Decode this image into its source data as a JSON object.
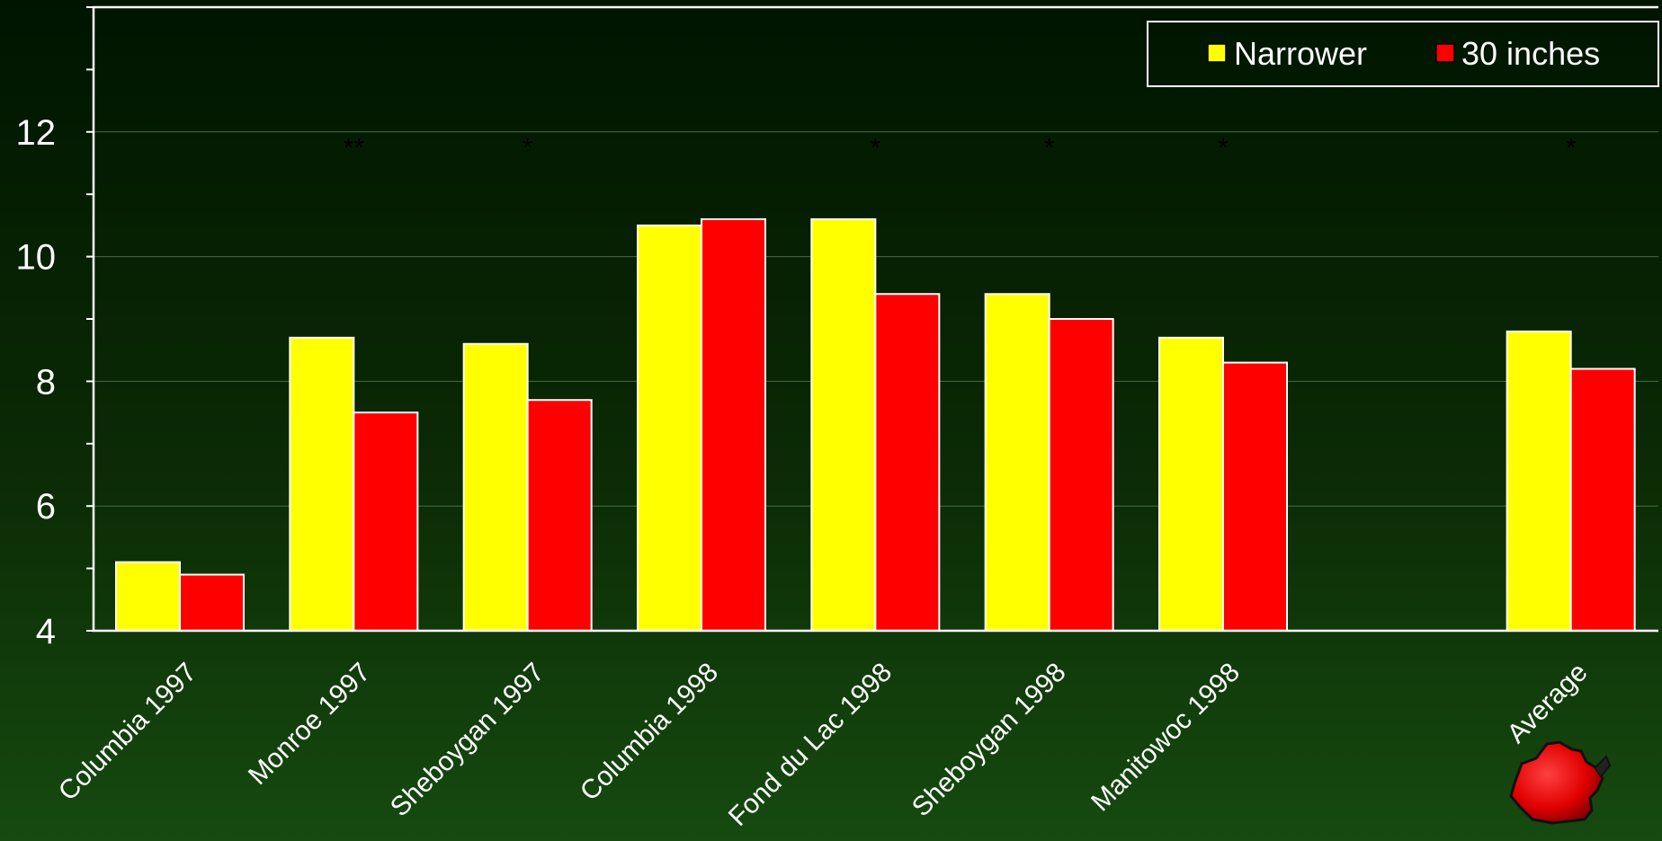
{
  "chart_data": {
    "type": "bar",
    "title": "",
    "xlabel": "",
    "ylabel": "",
    "ylim": [
      4,
      14
    ],
    "yticks": [
      4,
      6,
      8,
      10,
      12
    ],
    "grid": true,
    "legend_position": "top-right",
    "categories": [
      "Columbia 1997",
      "Monroe 1997",
      "Sheboygan 1997",
      "Columbia 1998",
      "Fond du Lac 1998",
      "Sheboygan 1998",
      "Manitowoc 1998",
      "",
      "Average"
    ],
    "series": [
      {
        "name": "Narrower",
        "color": "#FFFF00",
        "values": [
          5.1,
          8.7,
          8.6,
          10.5,
          10.6,
          9.4,
          8.7,
          null,
          8.8
        ]
      },
      {
        "name": "30 inches",
        "color": "#FF0000",
        "values": [
          4.9,
          7.5,
          7.7,
          10.6,
          9.4,
          9.0,
          8.3,
          null,
          8.2
        ]
      }
    ],
    "annotations": [
      "",
      "**",
      "*",
      "",
      "*",
      "*",
      "*",
      "",
      "*"
    ]
  },
  "colors": {
    "gridline": "#4a6a44",
    "axis": "#ffffff",
    "bar_stroke": "#ffffff",
    "logo_fill": "#e00000"
  },
  "icons": {
    "corner_logo": "wisconsin-state-icon"
  }
}
